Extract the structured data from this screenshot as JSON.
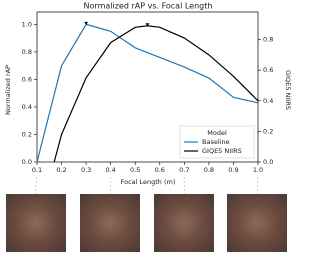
{
  "chart_data": {
    "type": "line",
    "title": "Normalized rAP vs. Focal Length",
    "x_label": "Focal Length (m)",
    "y_label": "Normalized rAP",
    "y2_label": "GIQE5 NIIRS",
    "xlim": [
      0.1,
      1.0
    ],
    "xticks": [
      0.1,
      0.2,
      0.3,
      0.4,
      0.5,
      0.6,
      0.7,
      0.8,
      0.9,
      {
        "value": 1.0,
        "label": "1.0"
      }
    ],
    "ylim": [
      0,
      1.09
    ],
    "yticks": [
      {
        "value": 0,
        "label": "0.0"
      },
      {
        "value": 0.2,
        "label": "0.2"
      },
      {
        "value": 0.4,
        "label": "0.4"
      },
      {
        "value": 0.6,
        "label": "0.6"
      },
      {
        "value": 0.8,
        "label": "0.8"
      },
      {
        "value": 1.0,
        "label": "1.0"
      }
    ],
    "y2lim": [
      0,
      0.98
    ],
    "y2ticks": [
      {
        "value": 0,
        "label": "0.0"
      },
      {
        "value": 0.2,
        "label": "0.2"
      },
      {
        "value": 0.4,
        "label": "0.4"
      },
      {
        "value": 0.6,
        "label": "0.6"
      },
      {
        "value": 0.8,
        "label": "0.8"
      }
    ],
    "legend_title": "Model",
    "legend": "lower right",
    "series": [
      {
        "name": "Baseline",
        "color": "#1f77b4",
        "x": [
          0.1,
          0.2,
          0.3,
          0.4,
          0.5,
          0.6,
          0.7,
          0.8,
          0.9,
          1.0
        ],
        "values": [
          0.0,
          0.7,
          1.0,
          0.95,
          0.83,
          0.76,
          0.69,
          0.61,
          0.47,
          0.43
        ]
      },
      {
        "name": "GIQE5 NIIRS",
        "color": "#000000",
        "axis": "y2",
        "x": [
          0.17,
          0.2,
          0.3,
          0.4,
          0.5,
          0.55,
          0.6,
          0.7,
          0.8,
          0.9,
          1.0
        ],
        "values": [
          0,
          0.18,
          0.55,
          0.78,
          0.88,
          0.89,
          0.88,
          0.81,
          0.7,
          0.56,
          0.4
        ]
      }
    ]
  }
}
